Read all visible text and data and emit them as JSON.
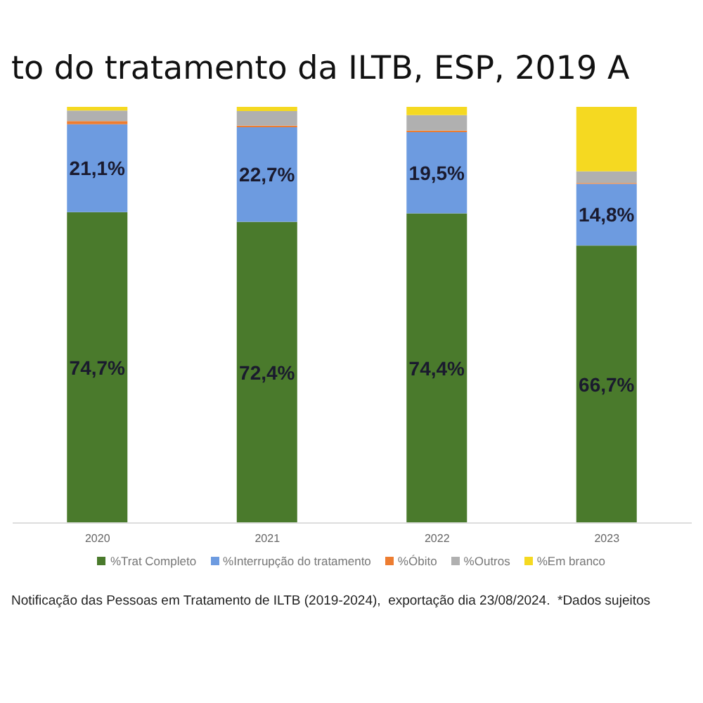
{
  "chart_data": {
    "type": "bar",
    "stacked": true,
    "title": "to do tratamento da ILTB, ESP, 2019 A",
    "categories": [
      "2020",
      "2021",
      "2022",
      "2023"
    ],
    "series": [
      {
        "name": "%Trat Completo",
        "color": "#4a7a2c",
        "values": [
          74.7,
          72.4,
          74.4,
          66.7
        ],
        "value_labels": [
          "74,7%",
          "72,4%",
          "74,4%",
          "66,7%"
        ]
      },
      {
        "name": "%Interrupção do tratamento",
        "color": "#6d9be0",
        "values": [
          21.1,
          22.7,
          19.5,
          14.8
        ],
        "value_labels": [
          "21,1%",
          "22,7%",
          "19,5%",
          "14,8%"
        ]
      },
      {
        "name": "%Óbito",
        "color": "#ed7d31",
        "values": [
          0.8,
          0.4,
          0.4,
          0.2
        ]
      },
      {
        "name": "%Outros",
        "color": "#b0b0b0",
        "values": [
          2.5,
          3.5,
          3.7,
          2.8
        ]
      },
      {
        "name": "%Em branco",
        "color": "#f5d921",
        "values": [
          0.9,
          1.0,
          2.0,
          15.5
        ]
      }
    ],
    "ylim": [
      0,
      100
    ],
    "tick_labels": "x",
    "legend": "bottom",
    "annotations": [
      "Notificação das Pessoas em Tratamento de ILTB (2019-2024),  exportação dia 23/08/2024.  *Dados sujeitos"
    ]
  }
}
